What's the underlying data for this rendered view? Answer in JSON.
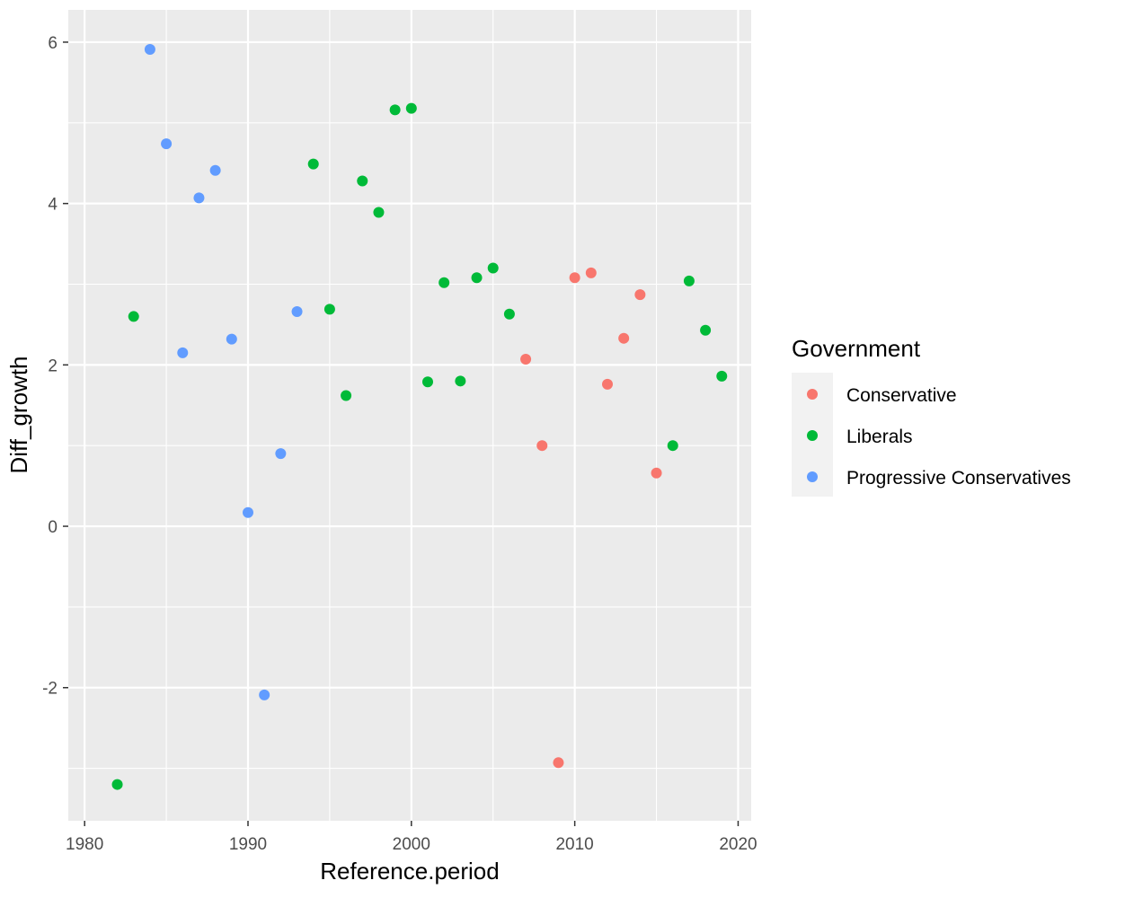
{
  "chart_data": {
    "type": "scatter",
    "xlabel": "Reference.period",
    "ylabel": "Diff_growth",
    "xlim": [
      1979,
      2020.8
    ],
    "ylim": [
      -3.65,
      6.4
    ],
    "x_ticks": [
      1980,
      1990,
      2000,
      2010,
      2020
    ],
    "x_tick_labels": [
      "1980",
      "1990",
      "2000",
      "2010",
      "2020"
    ],
    "y_ticks": [
      -2,
      0,
      2,
      4,
      6
    ],
    "y_tick_labels": [
      "-2",
      "0",
      "2",
      "4",
      "6"
    ],
    "grid": true,
    "legend": {
      "title": "Government",
      "placement": "right"
    },
    "series": [
      {
        "name": "Conservative",
        "color": "#F8766D",
        "points": [
          {
            "x": 2007,
            "y": 2.07
          },
          {
            "x": 2008,
            "y": 1.0
          },
          {
            "x": 2009,
            "y": -2.93
          },
          {
            "x": 2010,
            "y": 3.08
          },
          {
            "x": 2011,
            "y": 3.14
          },
          {
            "x": 2012,
            "y": 1.76
          },
          {
            "x": 2013,
            "y": 2.33
          },
          {
            "x": 2014,
            "y": 2.87
          },
          {
            "x": 2015,
            "y": 0.66
          }
        ]
      },
      {
        "name": "Liberals",
        "color": "#00BA38",
        "points": [
          {
            "x": 1982,
            "y": -3.2
          },
          {
            "x": 1983,
            "y": 2.6
          },
          {
            "x": 1994,
            "y": 4.49
          },
          {
            "x": 1995,
            "y": 2.69
          },
          {
            "x": 1996,
            "y": 1.62
          },
          {
            "x": 1997,
            "y": 4.28
          },
          {
            "x": 1998,
            "y": 3.89
          },
          {
            "x": 1999,
            "y": 5.16
          },
          {
            "x": 2000,
            "y": 5.18
          },
          {
            "x": 2001,
            "y": 1.79
          },
          {
            "x": 2002,
            "y": 3.02
          },
          {
            "x": 2003,
            "y": 1.8
          },
          {
            "x": 2004,
            "y": 3.08
          },
          {
            "x": 2005,
            "y": 3.2
          },
          {
            "x": 2006,
            "y": 2.63
          },
          {
            "x": 2016,
            "y": 1.0
          },
          {
            "x": 2017,
            "y": 3.04
          },
          {
            "x": 2018,
            "y": 2.43
          },
          {
            "x": 2019,
            "y": 1.86
          }
        ]
      },
      {
        "name": "Progressive Conservatives",
        "color": "#619CFF",
        "points": [
          {
            "x": 1984,
            "y": 5.91
          },
          {
            "x": 1985,
            "y": 4.74
          },
          {
            "x": 1986,
            "y": 2.15
          },
          {
            "x": 1987,
            "y": 4.07
          },
          {
            "x": 1988,
            "y": 4.41
          },
          {
            "x": 1989,
            "y": 2.32
          },
          {
            "x": 1990,
            "y": 0.17
          },
          {
            "x": 1991,
            "y": -2.09
          },
          {
            "x": 1992,
            "y": 0.9
          },
          {
            "x": 1993,
            "y": 2.66
          }
        ]
      }
    ]
  }
}
